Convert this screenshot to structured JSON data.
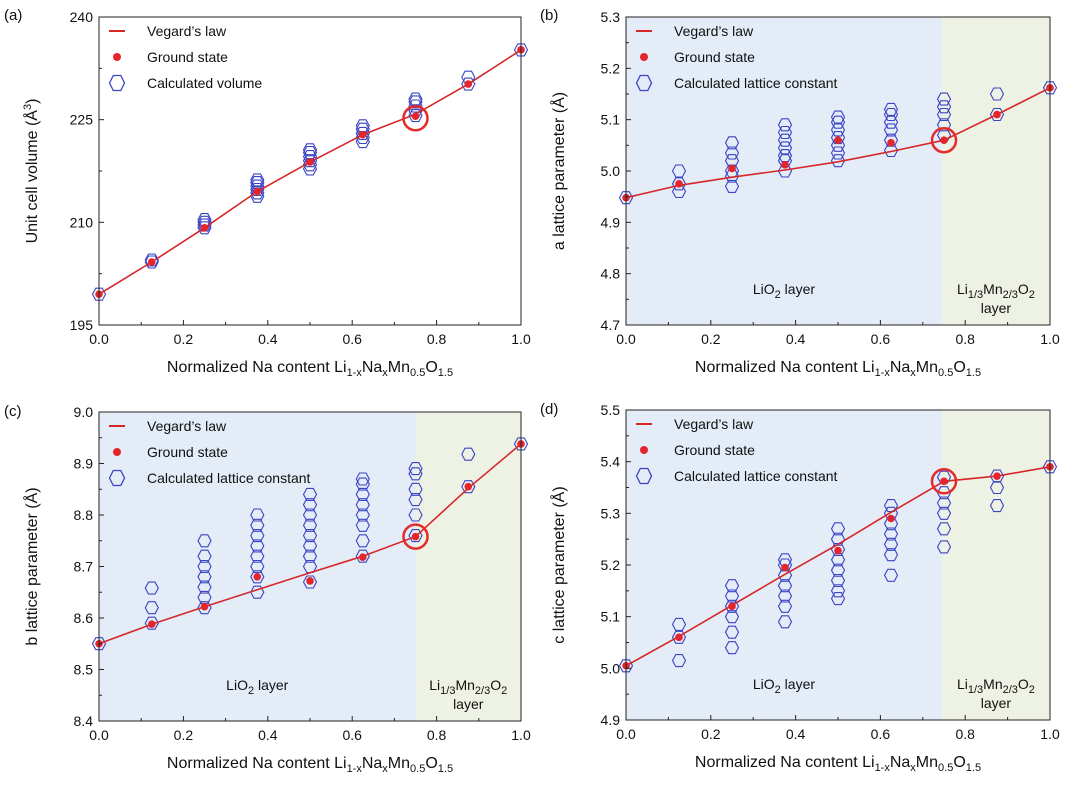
{
  "figure": {
    "colors": {
      "vegard": "#d62728",
      "ground": "#e3262b",
      "calc": "#3b44c4",
      "liO2_region": "#e3ecf7",
      "limn_region": "#eef2e4",
      "circle": "#e32b2b"
    }
  },
  "chart_data": [
    {
      "panel": "(a)",
      "type": "scatter",
      "xlabel": {
        "main": "Normalized Na content Li",
        "s1": "1-x",
        "t1": "Na",
        "s2": "x",
        "t2": "Mn",
        "s3": "0.5",
        "t3": "O",
        "s4": "1.5"
      },
      "ylabel": {
        "main": "Unit cell volume (Å",
        "sup": "3",
        "end": ")"
      },
      "xlim": [
        0,
        1
      ],
      "ylim": [
        195,
        240
      ],
      "xticks": [
        "0.0",
        "0.2",
        "0.4",
        "0.6",
        "0.8",
        "1.0"
      ],
      "yticks": [
        "195",
        "210",
        "225",
        "240"
      ],
      "ytick_values": [
        195,
        210,
        225,
        240
      ],
      "legend": [
        "Vegard’s law",
        "Ground state",
        "Calculated volume"
      ],
      "vegard": {
        "x": [
          0,
          0.125,
          0.25,
          0.375,
          0.5,
          0.625,
          0.75,
          0.875,
          1.0
        ],
        "y": [
          199.5,
          204.2,
          209.2,
          214.5,
          218.8,
          222.8,
          225.8,
          230.2,
          235.2
        ]
      },
      "ground_state": {
        "x": [
          0,
          0.125,
          0.25,
          0.375,
          0.5,
          0.625,
          0.75,
          0.875,
          1.0
        ],
        "y": [
          199.5,
          204.2,
          209.2,
          214.5,
          218.8,
          222.8,
          225.5,
          230.2,
          235.2
        ]
      },
      "calculated": [
        {
          "x": 0,
          "y": [
            199.5
          ]
        },
        {
          "x": 0.125,
          "y": [
            204.2,
            204.5
          ]
        },
        {
          "x": 0.25,
          "y": [
            209.2,
            209.6,
            210.0,
            210.4
          ]
        },
        {
          "x": 0.375,
          "y": [
            213.8,
            214.3,
            214.8,
            215.3,
            215.8,
            216.2
          ]
        },
        {
          "x": 0.5,
          "y": [
            217.8,
            218.4,
            219.0,
            219.6,
            220.2,
            220.6
          ]
        },
        {
          "x": 0.625,
          "y": [
            221.8,
            222.4,
            223.0,
            223.6,
            224.1
          ]
        },
        {
          "x": 0.75,
          "y": [
            225.6,
            226.3,
            227.0,
            227.6,
            228.0
          ]
        },
        {
          "x": 0.875,
          "y": [
            230.2,
            231.2
          ]
        },
        {
          "x": 1.0,
          "y": [
            235.2
          ]
        }
      ],
      "highlight": {
        "x": 0.75,
        "y": 225.2
      },
      "regions": null
    },
    {
      "panel": "(b)",
      "type": "scatter",
      "xlabel": {
        "main": "Normalized Na content Li",
        "s1": "1-x",
        "t1": "Na",
        "s2": "x",
        "t2": "Mn",
        "s3": "0.5",
        "t3": "O",
        "s4": "1.5"
      },
      "ylabel": {
        "main": "a lattice parameter (Å)"
      },
      "xlim": [
        0,
        1
      ],
      "ylim": [
        4.7,
        5.3
      ],
      "xticks": [
        "0.0",
        "0.2",
        "0.4",
        "0.6",
        "0.8",
        "1.0"
      ],
      "yticks": [
        "4.7",
        "4.8",
        "4.9",
        "5.0",
        "5.1",
        "5.2",
        "5.3"
      ],
      "ytick_values": [
        4.7,
        4.8,
        4.9,
        5.0,
        5.1,
        5.2,
        5.3
      ],
      "legend": [
        "Vegard’s law",
        "Ground state",
        "Calculated lattice constant"
      ],
      "vegard": {
        "x": [
          0,
          0.125,
          0.25,
          0.375,
          0.5,
          0.625,
          0.75,
          0.875,
          1.0
        ],
        "y": [
          4.948,
          4.972,
          4.988,
          5.002,
          5.018,
          5.038,
          5.06,
          5.11,
          5.162
        ]
      },
      "ground_state": {
        "x": [
          0,
          0.125,
          0.25,
          0.375,
          0.5,
          0.625,
          0.75,
          0.875,
          1.0
        ],
        "y": [
          4.948,
          4.975,
          5.005,
          5.012,
          5.06,
          5.055,
          5.06,
          5.11,
          5.162
        ]
      },
      "calculated": [
        {
          "x": 0,
          "y": [
            4.948
          ]
        },
        {
          "x": 0.125,
          "y": [
            4.96,
            4.975,
            5.0
          ]
        },
        {
          "x": 0.25,
          "y": [
            4.97,
            4.99,
            5.0,
            5.02,
            5.035,
            5.055
          ]
        },
        {
          "x": 0.375,
          "y": [
            5.0,
            5.02,
            5.03,
            5.045,
            5.06,
            5.075,
            5.09
          ]
        },
        {
          "x": 0.5,
          "y": [
            5.02,
            5.035,
            5.05,
            5.065,
            5.08,
            5.095,
            5.105
          ]
        },
        {
          "x": 0.625,
          "y": [
            5.04,
            5.06,
            5.08,
            5.095,
            5.11,
            5.12
          ]
        },
        {
          "x": 0.75,
          "y": [
            5.07,
            5.09,
            5.11,
            5.125,
            5.14
          ]
        },
        {
          "x": 0.875,
          "y": [
            5.11,
            5.15
          ]
        },
        {
          "x": 1.0,
          "y": [
            5.162
          ]
        }
      ],
      "highlight": {
        "x": 0.75,
        "y": 5.06
      },
      "regions": {
        "split": 0.745,
        "left": "LiO",
        "left_sub": "2",
        "left_end": " layer",
        "right_a": "Li",
        "right_s1": "1/3",
        "right_b": "Mn",
        "right_s2": "2/3",
        "right_c": "O",
        "right_s3": "2",
        "right_line2": "layer"
      }
    },
    {
      "panel": "(c)",
      "type": "scatter",
      "xlabel": {
        "main": "Normalized Na content Li",
        "s1": "1-x",
        "t1": "Na",
        "s2": "x",
        "t2": "Mn",
        "s3": "0.5",
        "t3": "O",
        "s4": "1.5"
      },
      "ylabel": {
        "main": "b lattice parameter (Å)"
      },
      "xlim": [
        0,
        1
      ],
      "ylim": [
        8.4,
        9.0
      ],
      "xticks": [
        "0.0",
        "0.2",
        "0.4",
        "0.6",
        "0.8",
        "1.0"
      ],
      "yticks": [
        "8.4",
        "8.5",
        "8.6",
        "8.7",
        "8.8",
        "8.9",
        "9.0"
      ],
      "ytick_values": [
        8.4,
        8.5,
        8.6,
        8.7,
        8.8,
        8.9,
        9.0
      ],
      "legend": [
        "Vegard’s law",
        "Ground state",
        "Calculated lattice constant"
      ],
      "vegard": {
        "x": [
          0,
          0.125,
          0.25,
          0.375,
          0.5,
          0.625,
          0.75,
          0.875,
          1.0
        ],
        "y": [
          8.55,
          8.588,
          8.622,
          8.655,
          8.688,
          8.72,
          8.758,
          8.852,
          8.938
        ]
      },
      "ground_state": {
        "x": [
          0,
          0.125,
          0.25,
          0.375,
          0.5,
          0.625,
          0.75,
          0.875,
          1.0
        ],
        "y": [
          8.55,
          8.588,
          8.622,
          8.68,
          8.672,
          8.718,
          8.758,
          8.855,
          8.938
        ]
      },
      "calculated": [
        {
          "x": 0,
          "y": [
            8.55
          ]
        },
        {
          "x": 0.125,
          "y": [
            8.59,
            8.62,
            8.658
          ]
        },
        {
          "x": 0.25,
          "y": [
            8.62,
            8.64,
            8.66,
            8.68,
            8.7,
            8.72,
            8.75
          ]
        },
        {
          "x": 0.375,
          "y": [
            8.65,
            8.68,
            8.7,
            8.72,
            8.74,
            8.76,
            8.78,
            8.8
          ]
        },
        {
          "x": 0.5,
          "y": [
            8.67,
            8.7,
            8.72,
            8.74,
            8.76,
            8.78,
            8.8,
            8.82,
            8.84
          ]
        },
        {
          "x": 0.625,
          "y": [
            8.72,
            8.75,
            8.78,
            8.8,
            8.82,
            8.84,
            8.86,
            8.87
          ]
        },
        {
          "x": 0.75,
          "y": [
            8.76,
            8.8,
            8.83,
            8.85,
            8.88,
            8.89
          ]
        },
        {
          "x": 0.875,
          "y": [
            8.855,
            8.918
          ]
        },
        {
          "x": 1.0,
          "y": [
            8.938
          ]
        }
      ],
      "highlight": {
        "x": 0.75,
        "y": 8.758
      },
      "regions": {
        "split": 0.75,
        "left": "LiO",
        "left_sub": "2",
        "left_end": " layer",
        "right_a": "Li",
        "right_s1": "1/3",
        "right_b": "Mn",
        "right_s2": "2/3",
        "right_c": "O",
        "right_s3": "2",
        "right_line2": "layer"
      }
    },
    {
      "panel": "(d)",
      "type": "scatter",
      "xlabel": {
        "main": "Normalized Na content Li",
        "s1": "1-x",
        "t1": "Na",
        "s2": "x",
        "t2": "Mn",
        "s3": "0.5",
        "t3": "O",
        "s4": "1.5"
      },
      "ylabel": {
        "main": "c lattice parameter (Å)"
      },
      "xlim": [
        0,
        1
      ],
      "ylim": [
        4.9,
        5.5
      ],
      "xticks": [
        "0.0",
        "0.2",
        "0.4",
        "0.6",
        "0.8",
        "1.0"
      ],
      "yticks": [
        "4.9",
        "5.0",
        "5.1",
        "5.2",
        "5.3",
        "5.4",
        "5.5"
      ],
      "ytick_values": [
        4.9,
        5.0,
        5.1,
        5.2,
        5.3,
        5.4,
        5.5
      ],
      "legend": [
        "Vegard’s law",
        "Ground state",
        "Calculated lattice constant"
      ],
      "vegard": {
        "x": [
          0,
          0.125,
          0.25,
          0.375,
          0.5,
          0.625,
          0.75,
          0.875,
          1.0
        ],
        "y": [
          5.005,
          5.062,
          5.122,
          5.182,
          5.24,
          5.302,
          5.362,
          5.372,
          5.39
        ]
      },
      "ground_state": {
        "x": [
          0,
          0.125,
          0.25,
          0.375,
          0.5,
          0.625,
          0.75,
          0.875,
          1.0
        ],
        "y": [
          5.005,
          5.06,
          5.12,
          5.195,
          5.228,
          5.29,
          5.362,
          5.372,
          5.39
        ]
      },
      "calculated": [
        {
          "x": 0,
          "y": [
            5.005
          ]
        },
        {
          "x": 0.125,
          "y": [
            5.015,
            5.06,
            5.085
          ]
        },
        {
          "x": 0.25,
          "y": [
            5.04,
            5.07,
            5.1,
            5.12,
            5.14,
            5.16
          ]
        },
        {
          "x": 0.375,
          "y": [
            5.09,
            5.12,
            5.14,
            5.16,
            5.18,
            5.2,
            5.21
          ]
        },
        {
          "x": 0.5,
          "y": [
            5.135,
            5.15,
            5.17,
            5.19,
            5.21,
            5.23,
            5.25,
            5.27
          ]
        },
        {
          "x": 0.625,
          "y": [
            5.18,
            5.22,
            5.24,
            5.26,
            5.28,
            5.3,
            5.315
          ]
        },
        {
          "x": 0.75,
          "y": [
            5.235,
            5.27,
            5.3,
            5.32,
            5.34,
            5.37
          ]
        },
        {
          "x": 0.875,
          "y": [
            5.315,
            5.35,
            5.372
          ]
        },
        {
          "x": 1.0,
          "y": [
            5.39
          ]
        }
      ],
      "highlight": {
        "x": 0.75,
        "y": 5.362
      },
      "regions": {
        "split": 0.745,
        "left": "LiO",
        "left_sub": "2",
        "left_end": " layer",
        "right_a": "Li",
        "right_s1": "1/3",
        "right_b": "Mn",
        "right_s2": "2/3",
        "right_c": "O",
        "right_s3": "2",
        "right_line2": "layer"
      }
    }
  ]
}
